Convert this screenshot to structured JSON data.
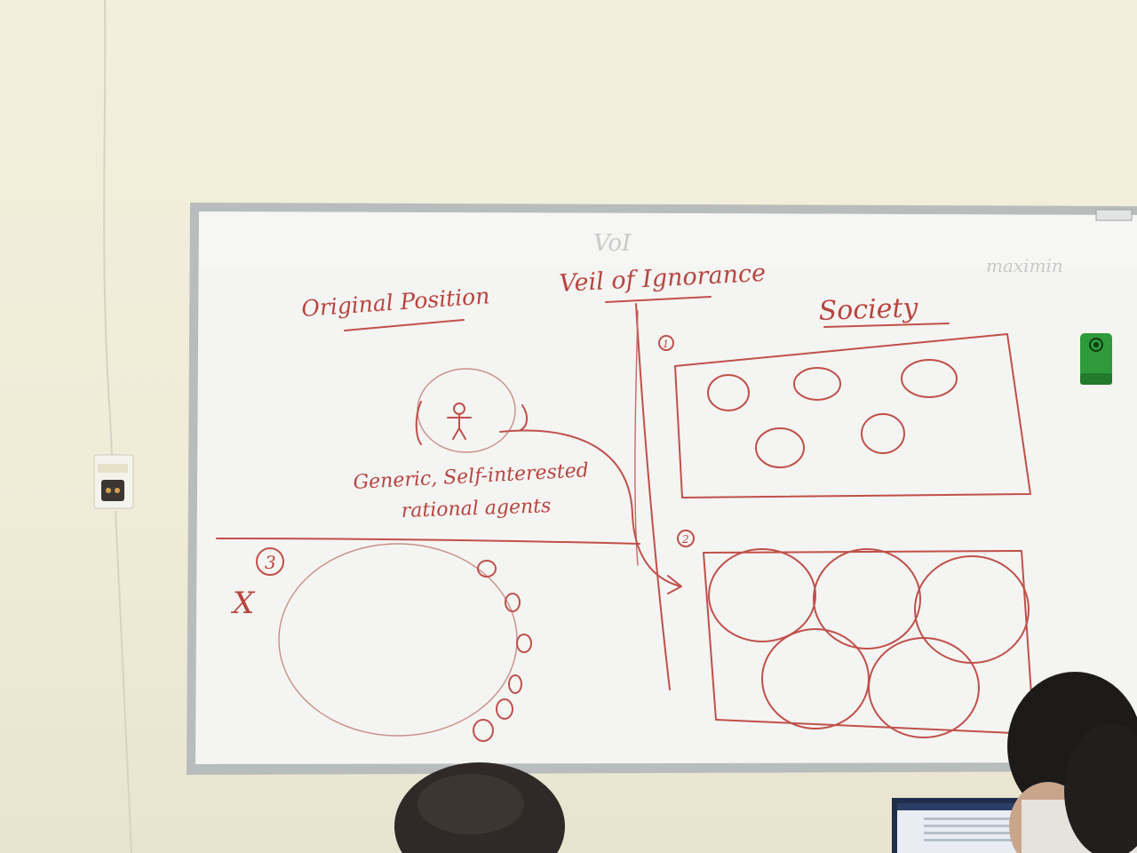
{
  "board": {
    "title": "Veil of Ignorance",
    "left_heading": "Original Position",
    "right_heading": "Society",
    "agent_caption_line1": "Generic, Self-interested",
    "agent_caption_line2": "rational agents",
    "marker_1": "1",
    "marker_2": "2",
    "marker_3": "3",
    "cross_mark": "X",
    "faint_ghost_text": "VoI",
    "faint_ghost_text_right": "maximin"
  },
  "colors": {
    "wall": "#efecd8",
    "board_surface": "#f4f4f2",
    "board_frame": "#b9bcbd",
    "marker_ink": "#c0504a",
    "eraser": "#2f9a3a"
  },
  "icons": {
    "wall_outlet": "power-outlet-icon",
    "eraser": "whiteboard-eraser-icon",
    "agent_figure": "stick-figure-icon"
  }
}
